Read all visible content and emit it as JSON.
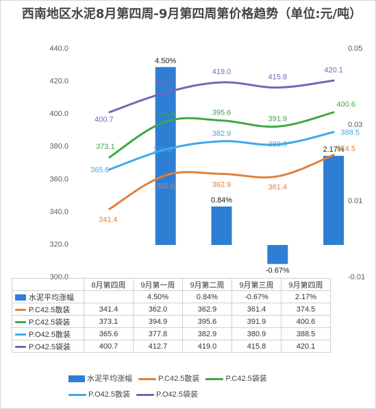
{
  "chart_data": {
    "type": "bar+line",
    "title": "西南地区水泥8月第四周-9月第四周第价格趋势（单位:元/吨）",
    "categories": [
      "8月第四周",
      "9月第一周",
      "9月第二周",
      "9月第三周",
      "9月第四周"
    ],
    "y_left": {
      "ylim": [
        300,
        440
      ],
      "ticks": [
        "300.0",
        "320.0",
        "340.0",
        "360.0",
        "380.0",
        "400.0",
        "420.0",
        "440.0"
      ]
    },
    "y_right": {
      "ylim": [
        -0.01,
        0.05
      ],
      "ticks": [
        "-0.01",
        "0.01",
        "0.03",
        "0.05"
      ]
    },
    "grid": false,
    "legend_position": "bottom",
    "bar_series": {
      "name": "水泥平均涨幅",
      "color": "#2E7FD4",
      "axis": "right",
      "values": [
        null,
        0.045,
        0.0084,
        -0.0067,
        0.0217
      ],
      "labels": [
        "",
        "4.50%",
        "0.84%",
        "-0.67%",
        "2.17%"
      ]
    },
    "series": [
      {
        "name": "P.C42.5散装",
        "color": "#E0803A",
        "axis": "left",
        "values": [
          341.4,
          362.0,
          362.9,
          361.4,
          374.5
        ],
        "labels": [
          "341.4",
          "362.0",
          "362.9",
          "361.4",
          "374.5"
        ]
      },
      {
        "name": "P.C42.5袋装",
        "color": "#3EA843",
        "axis": "left",
        "values": [
          373.1,
          394.9,
          395.6,
          391.9,
          400.6
        ],
        "labels": [
          "373.1",
          "394.9",
          "395.6",
          "391.9",
          "400.6"
        ]
      },
      {
        "name": "P.O42.5散装",
        "color": "#3CAAE6",
        "axis": "left",
        "values": [
          365.6,
          377.8,
          382.9,
          380.9,
          388.5
        ],
        "labels": [
          "365.6",
          "377.8",
          "382.9",
          "380.9",
          "388.5"
        ]
      },
      {
        "name": "P.O42.5袋装",
        "color": "#7B62B8",
        "axis": "left",
        "values": [
          400.7,
          412.7,
          419.0,
          415.8,
          420.1
        ],
        "labels": [
          "400.7",
          "412.7",
          "419.0",
          "415.8",
          "420.1"
        ]
      }
    ],
    "table": {
      "header": [
        "8月第四周",
        "9月第一周",
        "9月第二周",
        "9月第三周",
        "9月第四周"
      ],
      "rows": [
        {
          "name": "水泥平均涨幅",
          "cells": [
            "",
            "4.50%",
            "0.84%",
            "-0.67%",
            "2.17%"
          ]
        },
        {
          "name": "P.C42.5散装",
          "cells": [
            "341.4",
            "362.0",
            "362.9",
            "361.4",
            "374.5"
          ]
        },
        {
          "name": "P.C42.5袋装",
          "cells": [
            "373.1",
            "394.9",
            "395.6",
            "391.9",
            "400.6"
          ]
        },
        {
          "name": "P.O42.5散装",
          "cells": [
            "365.6",
            "377.8",
            "382.9",
            "380.9",
            "388.5"
          ]
        },
        {
          "name": "P.O42.5袋装",
          "cells": [
            "400.7",
            "412.7",
            "419.0",
            "415.8",
            "420.1"
          ]
        }
      ]
    }
  }
}
